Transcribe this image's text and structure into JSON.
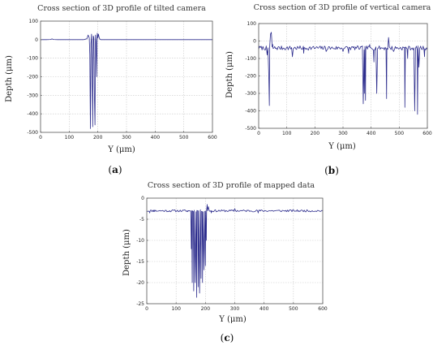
{
  "chart_data": [
    {
      "type": "line",
      "title": "Cross section of 3D profile of tilted camera",
      "xlabel": "Y (μm)",
      "ylabel": "Depth (μm)",
      "caption_letter": "a",
      "xlim": [
        0,
        600
      ],
      "ylim": [
        -500,
        100
      ],
      "xticks": [
        0,
        100,
        200,
        300,
        400,
        500,
        600
      ],
      "yticks": [
        100,
        0,
        -100,
        -200,
        -300,
        -400,
        -500
      ],
      "grid": true,
      "line_color": "#2b2b8c",
      "series": [
        {
          "x": [
            0,
            20,
            35,
            40,
            45,
            60,
            100,
            150,
            162,
            166,
            170,
            172,
            174,
            176,
            178,
            180,
            182,
            184,
            186,
            188,
            190,
            192,
            194,
            196,
            198,
            200,
            202,
            204,
            206,
            210,
            250,
            300,
            400,
            500,
            600
          ],
          "y": [
            0,
            0,
            1,
            4,
            1,
            0,
            0,
            0,
            5,
            25,
            10,
            -80,
            -480,
            -20,
            30,
            -150,
            -470,
            20,
            10,
            -300,
            -460,
            25,
            -10,
            -200,
            35,
            10,
            30,
            15,
            5,
            0,
            0,
            0,
            0,
            0,
            0
          ]
        }
      ]
    },
    {
      "type": "line",
      "title": "Cross section of 3D profile of vertical camera",
      "xlabel": "Y (μm)",
      "ylabel": "Depth (μm)",
      "caption_letter": "b",
      "xlim": [
        0,
        600
      ],
      "ylim": [
        -500,
        100
      ],
      "xticks": [
        0,
        100,
        200,
        300,
        400,
        500,
        600
      ],
      "yticks": [
        100,
        0,
        -100,
        -200,
        -300,
        -400,
        -500
      ],
      "grid": true,
      "line_color": "#2b2b8c",
      "base_level": -40,
      "noise": 12,
      "seed": 7,
      "x_step": 3,
      "events": [
        {
          "x": 30,
          "y": -80
        },
        {
          "x": 36,
          "y": -200
        },
        {
          "x": 38,
          "y": -370
        },
        {
          "x": 42,
          "y": 40
        },
        {
          "x": 45,
          "y": 50
        },
        {
          "x": 50,
          "y": -20
        },
        {
          "x": 120,
          "y": -90
        },
        {
          "x": 160,
          "y": -70
        },
        {
          "x": 240,
          "y": -60
        },
        {
          "x": 300,
          "y": -60
        },
        {
          "x": 320,
          "y": -70
        },
        {
          "x": 372,
          "y": -360
        },
        {
          "x": 376,
          "y": -300
        },
        {
          "x": 380,
          "y": -340
        },
        {
          "x": 395,
          "y": -20
        },
        {
          "x": 410,
          "y": -120
        },
        {
          "x": 420,
          "y": -300
        },
        {
          "x": 440,
          "y": -40
        },
        {
          "x": 455,
          "y": -330
        },
        {
          "x": 462,
          "y": 20
        },
        {
          "x": 480,
          "y": -60
        },
        {
          "x": 520,
          "y": -380
        },
        {
          "x": 530,
          "y": -100
        },
        {
          "x": 555,
          "y": -400
        },
        {
          "x": 565,
          "y": -420
        },
        {
          "x": 570,
          "y": -150
        },
        {
          "x": 590,
          "y": -90
        }
      ]
    },
    {
      "type": "line",
      "title": "Cross section of 3D profile of mapped data",
      "xlabel": "Y (μm)",
      "ylabel": "Depth (μm)",
      "caption_letter": "c",
      "xlim": [
        0,
        600
      ],
      "ylim": [
        -25,
        0
      ],
      "xticks": [
        0,
        100,
        200,
        300,
        400,
        500,
        600
      ],
      "yticks": [
        0,
        -5,
        -10,
        -15,
        -20,
        -25
      ],
      "grid": true,
      "line_color": "#2b2b8c",
      "base_level": -3,
      "noise": 0.25,
      "seed": 11,
      "x_step": 3,
      "events": [
        {
          "x": 10,
          "y": -3.5
        },
        {
          "x": 25,
          "y": -2.8
        },
        {
          "x": 140,
          "y": -3.2
        },
        {
          "x": 148,
          "y": -3.0
        },
        {
          "x": 152,
          "y": -12
        },
        {
          "x": 155,
          "y": -20
        },
        {
          "x": 160,
          "y": -22
        },
        {
          "x": 165,
          "y": -20
        },
        {
          "x": 170,
          "y": -23.5
        },
        {
          "x": 175,
          "y": -21
        },
        {
          "x": 180,
          "y": -22.5
        },
        {
          "x": 185,
          "y": -19
        },
        {
          "x": 190,
          "y": -20
        },
        {
          "x": 195,
          "y": -17
        },
        {
          "x": 200,
          "y": -16
        },
        {
          "x": 203,
          "y": -10
        },
        {
          "x": 206,
          "y": -1.5
        },
        {
          "x": 210,
          "y": -2
        },
        {
          "x": 220,
          "y": -3.5
        },
        {
          "x": 300,
          "y": -2.5
        },
        {
          "x": 380,
          "y": -3.5
        },
        {
          "x": 600,
          "y": -3
        }
      ]
    }
  ]
}
